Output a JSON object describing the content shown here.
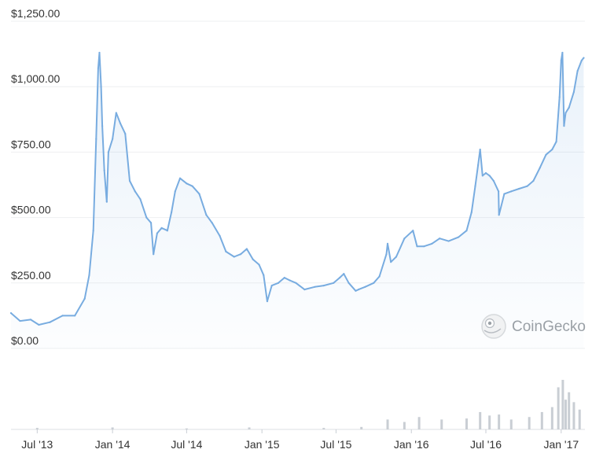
{
  "chart_data": {
    "type": "area",
    "y_ticks": [
      "$1,250.00",
      "$1,000.00",
      "$750.00",
      "$500.00",
      "$250.00",
      "$0.00"
    ],
    "y_tick_values": [
      1250,
      1000,
      750,
      500,
      250,
      0
    ],
    "x_ticks": [
      "Jul '13",
      "Jan '14",
      "Jul '14",
      "Jan '15",
      "Jul '15",
      "Jan '16",
      "Jul '16",
      "Jan '17"
    ],
    "x_tick_dates": [
      "2013-07-01",
      "2014-01-01",
      "2014-07-01",
      "2015-01-01",
      "2015-07-01",
      "2016-01-01",
      "2016-07-01",
      "2017-01-01"
    ],
    "xlim": [
      "2013-04-28",
      "2017-02-28"
    ],
    "ylim": [
      0,
      1250
    ],
    "grid": true,
    "series": [
      {
        "color": "#78ace0",
        "x": [
          "2013-04-28",
          "2013-05-20",
          "2013-06-15",
          "2013-07-05",
          "2013-08-01",
          "2013-09-01",
          "2013-10-01",
          "2013-10-25",
          "2013-11-05",
          "2013-11-15",
          "2013-11-22",
          "2013-11-27",
          "2013-11-30",
          "2013-12-04",
          "2013-12-07",
          "2013-12-12",
          "2013-12-18",
          "2013-12-22",
          "2014-01-01",
          "2014-01-10",
          "2014-01-20",
          "2014-02-01",
          "2014-02-12",
          "2014-02-25",
          "2014-03-10",
          "2014-03-25",
          "2014-04-05",
          "2014-04-11",
          "2014-04-20",
          "2014-05-01",
          "2014-05-15",
          "2014-05-25",
          "2014-06-03",
          "2014-06-15",
          "2014-07-01",
          "2014-07-15",
          "2014-08-01",
          "2014-08-18",
          "2014-09-01",
          "2014-09-20",
          "2014-10-05",
          "2014-10-25",
          "2014-11-10",
          "2014-11-25",
          "2014-12-10",
          "2014-12-25",
          "2015-01-05",
          "2015-01-14",
          "2015-01-25",
          "2015-02-10",
          "2015-02-25",
          "2015-03-10",
          "2015-03-25",
          "2015-04-15",
          "2015-05-10",
          "2015-06-01",
          "2015-06-25",
          "2015-07-10",
          "2015-07-20",
          "2015-08-01",
          "2015-08-18",
          "2015-08-25",
          "2015-09-10",
          "2015-10-01",
          "2015-10-15",
          "2015-11-01",
          "2015-11-04",
          "2015-11-12",
          "2015-11-25",
          "2015-12-15",
          "2016-01-05",
          "2016-01-15",
          "2016-02-01",
          "2016-02-20",
          "2016-03-10",
          "2016-04-01",
          "2016-04-25",
          "2016-05-15",
          "2016-05-27",
          "2016-06-05",
          "2016-06-12",
          "2016-06-17",
          "2016-06-23",
          "2016-07-01",
          "2016-07-10",
          "2016-07-20",
          "2016-08-01",
          "2016-08-02",
          "2016-08-15",
          "2016-09-01",
          "2016-09-20",
          "2016-10-10",
          "2016-10-25",
          "2016-11-10",
          "2016-11-25",
          "2016-12-10",
          "2016-12-20",
          "2016-12-28",
          "2017-01-01",
          "2017-01-04",
          "2017-01-08",
          "2017-01-12",
          "2017-01-20",
          "2017-02-01",
          "2017-02-10",
          "2017-02-20",
          "2017-02-25"
        ],
        "values": [
          135,
          105,
          110,
          90,
          100,
          125,
          125,
          190,
          280,
          450,
          800,
          1070,
          1130,
          1000,
          850,
          680,
          560,
          750,
          800,
          900,
          860,
          820,
          640,
          600,
          570,
          500,
          480,
          360,
          440,
          460,
          450,
          520,
          600,
          650,
          630,
          620,
          590,
          510,
          480,
          430,
          370,
          350,
          360,
          380,
          340,
          320,
          280,
          180,
          240,
          250,
          270,
          260,
          250,
          225,
          235,
          240,
          250,
          270,
          285,
          250,
          220,
          225,
          235,
          250,
          275,
          360,
          400,
          330,
          350,
          420,
          450,
          390,
          390,
          400,
          420,
          410,
          425,
          450,
          520,
          620,
          700,
          760,
          660,
          670,
          660,
          640,
          600,
          510,
          590,
          600,
          610,
          620,
          640,
          690,
          740,
          760,
          790,
          960,
          1100,
          1130,
          850,
          900,
          920,
          980,
          1060,
          1100,
          1110
        ]
      }
    ],
    "volume": {
      "color": "#c9ced4",
      "x": [
        "2013-07-01",
        "2014-01-01",
        "2014-07-01",
        "2014-12-01",
        "2015-06-01",
        "2015-09-01",
        "2015-11-04",
        "2015-12-15",
        "2016-01-20",
        "2016-03-15",
        "2016-05-15",
        "2016-06-17",
        "2016-07-10",
        "2016-08-02",
        "2016-09-01",
        "2016-10-15",
        "2016-11-15",
        "2016-12-10",
        "2016-12-25",
        "2017-01-05",
        "2017-01-12",
        "2017-01-20",
        "2017-02-01",
        "2017-02-15"
      ],
      "values": [
        0.03,
        0.04,
        0.02,
        0.04,
        0.03,
        0.05,
        0.2,
        0.15,
        0.25,
        0.2,
        0.22,
        0.35,
        0.28,
        0.3,
        0.2,
        0.25,
        0.35,
        0.45,
        0.85,
        1.0,
        0.6,
        0.75,
        0.55,
        0.4
      ]
    }
  },
  "watermark": {
    "text": "CoinGecko",
    "icon": "gecko-logo-icon"
  }
}
